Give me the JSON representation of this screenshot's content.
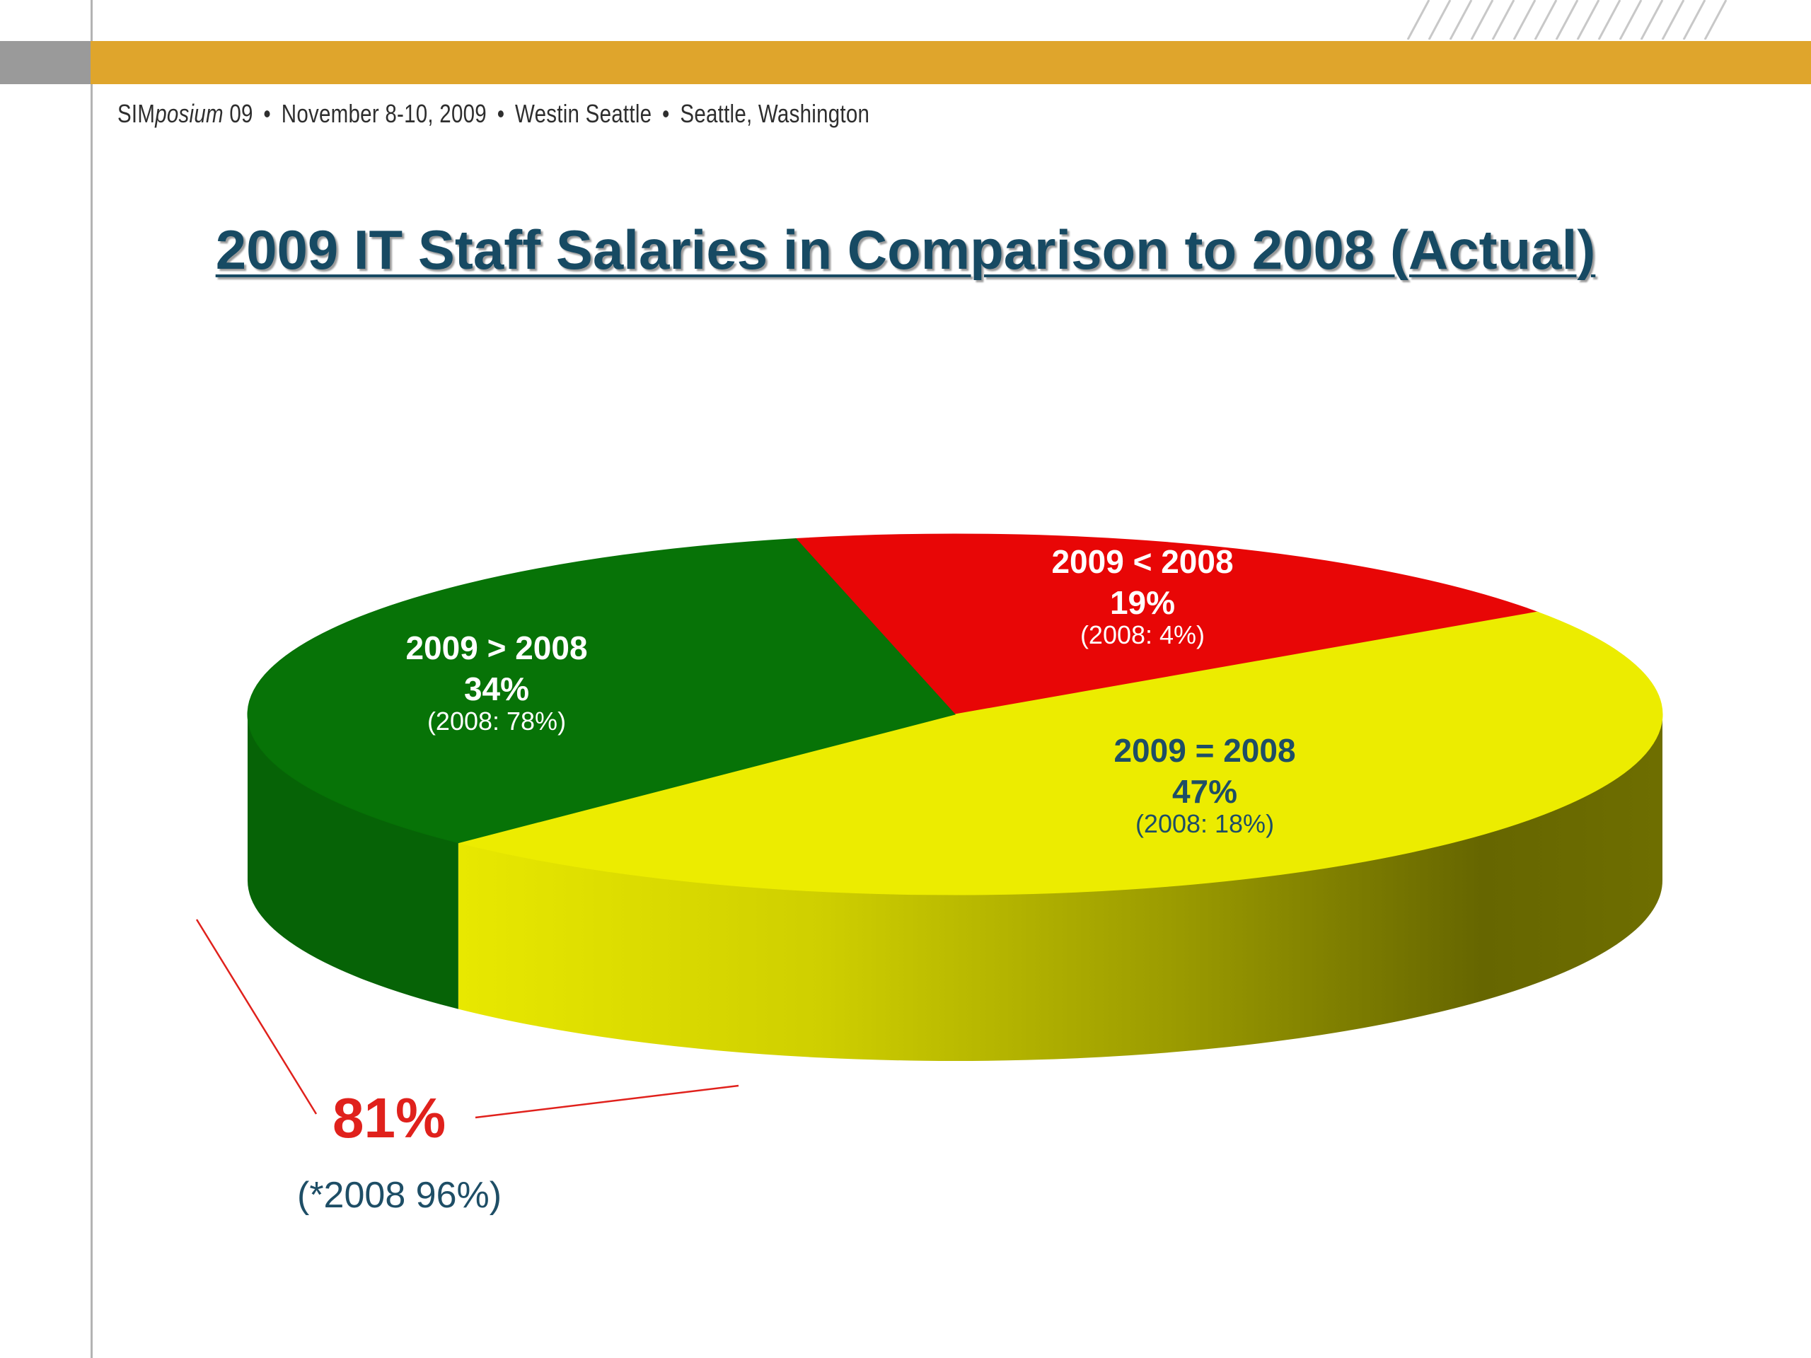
{
  "header": {
    "event_prefix": "SIM",
    "event_italic": "posium",
    "event_suffix": " 09",
    "sep": "•",
    "date": "November 8-10, 2009",
    "venue": "Westin Seattle",
    "city": "Seattle, Washington"
  },
  "colors": {
    "band": "#dfa52c",
    "title": "#174a63",
    "green": "#077307",
    "red": "#e80606",
    "yellow": "#ecec00",
    "callout": "#e0211c"
  },
  "chart_data": {
    "type": "pie",
    "title": "2009 IT Staff Salaries in Comparison to 2008 (Actual)",
    "series": [
      {
        "label": "2009 < 2008",
        "value": 19,
        "value_label": "19%",
        "note": "(2008: 4%)",
        "color": "#e80606"
      },
      {
        "label": "2009 = 2008",
        "value": 47,
        "value_label": "47%",
        "note": "(2008: 18%)",
        "color": "#ecec00"
      },
      {
        "label": "2009 > 2008",
        "value": 34,
        "value_label": "34%",
        "note": "(2008: 78%)",
        "color": "#077307"
      }
    ]
  },
  "callout": {
    "value": "81%",
    "note": "(*2008 96%)"
  }
}
